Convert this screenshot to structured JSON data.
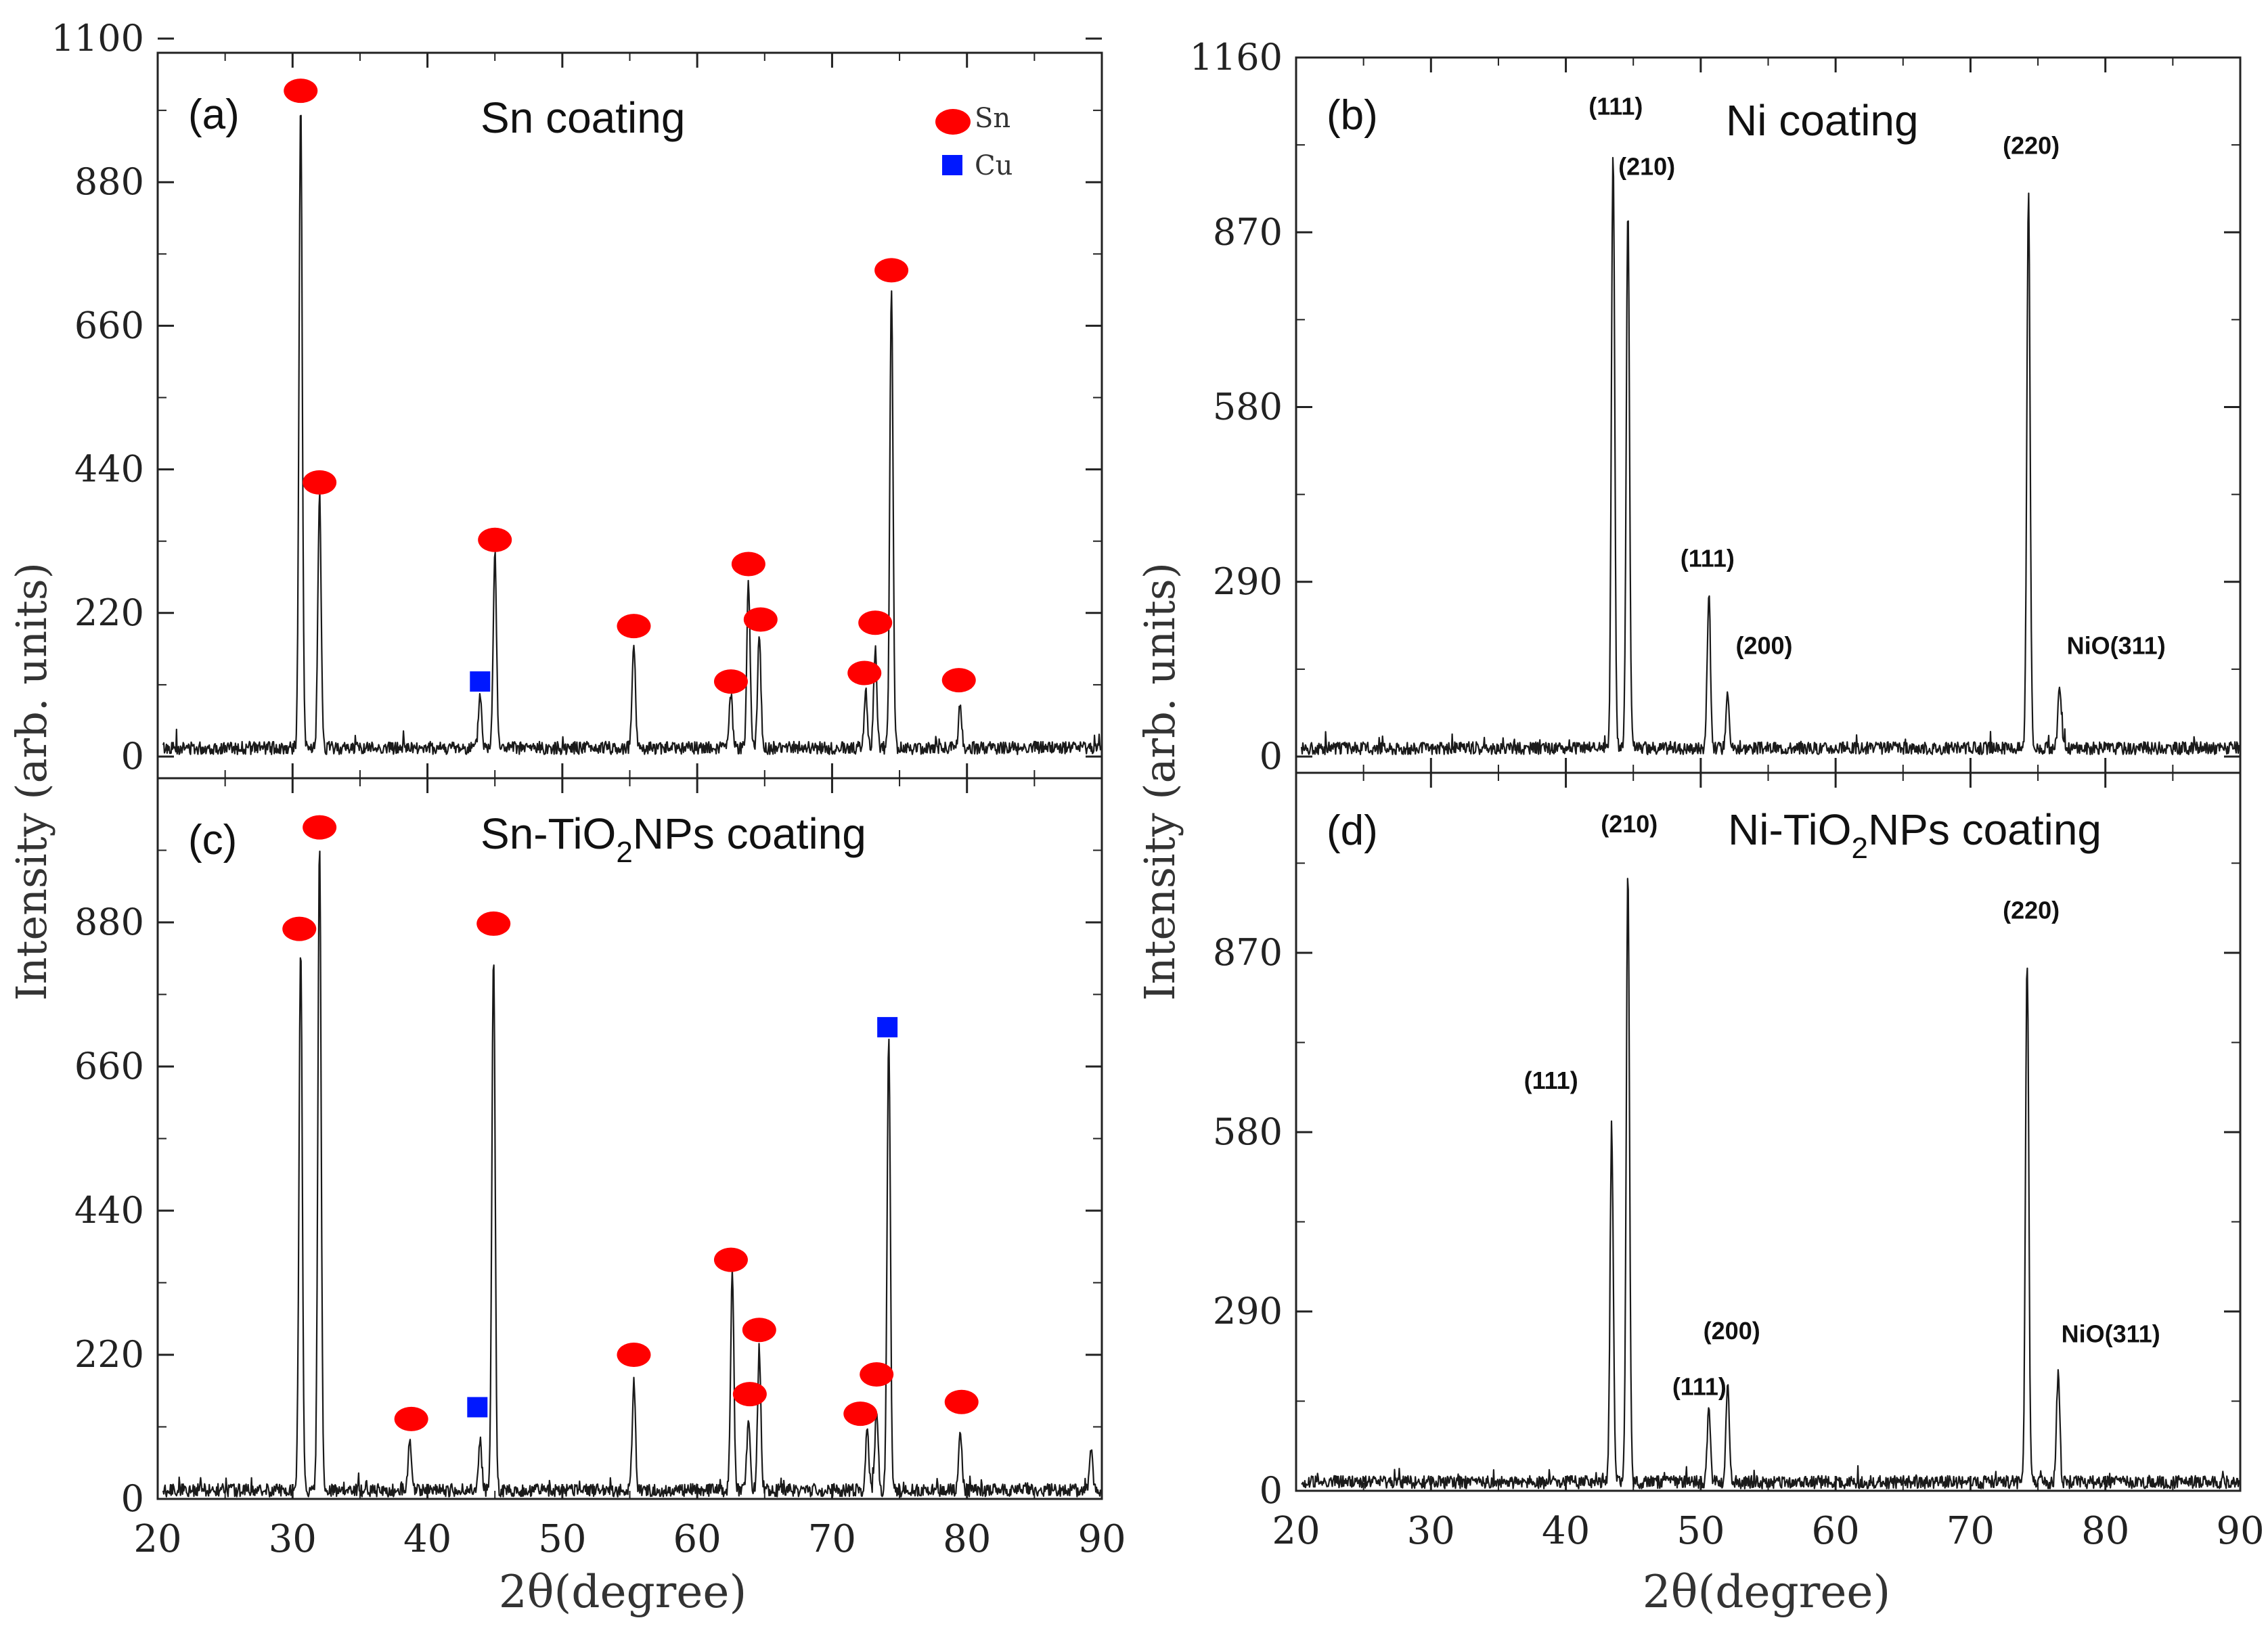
{
  "figure": {
    "ylabel": "Intensity (arb. units)",
    "xlabel": "2θ(degree)",
    "legend": {
      "sn": "Sn",
      "cu": "Cu",
      "sn_color": "#ff0000",
      "cu_color": "#0018ff"
    }
  },
  "chart_data": [
    {
      "id": "a",
      "type": "line",
      "panel_label": "(a)",
      "title": "Sn coating",
      "xlim": [
        20,
        90
      ],
      "ylim": [
        0,
        1100
      ],
      "xticks": [
        20,
        30,
        40,
        50,
        60,
        70,
        80,
        90
      ],
      "yticks": [
        0,
        220,
        440,
        660,
        880,
        1100
      ],
      "ytick_labels": [
        "0",
        "220",
        "440",
        "660",
        "880",
        "1100"
      ],
      "xtick_labels": [],
      "series": [
        {
          "name": "Sn coating",
          "peaks": [
            {
              "x": 30.6,
              "y": 1000
            },
            {
              "x": 32.0,
              "y": 400
            },
            {
              "x": 43.9,
              "y": 95
            },
            {
              "x": 45.0,
              "y": 315
            },
            {
              "x": 55.3,
              "y": 175
            },
            {
              "x": 62.5,
              "y": 95
            },
            {
              "x": 63.8,
              "y": 270
            },
            {
              "x": 64.6,
              "y": 185
            },
            {
              "x": 72.5,
              "y": 95
            },
            {
              "x": 73.2,
              "y": 165
            },
            {
              "x": 74.4,
              "y": 720
            },
            {
              "x": 79.5,
              "y": 80
            }
          ]
        }
      ],
      "markers": [
        {
          "kind": "sn",
          "x": 30.6,
          "y": 1020
        },
        {
          "kind": "sn",
          "x": 32.0,
          "y": 420
        },
        {
          "kind": "cu",
          "x": 43.9,
          "y": 115
        },
        {
          "kind": "sn",
          "x": 45.0,
          "y": 332
        },
        {
          "kind": "sn",
          "x": 55.3,
          "y": 200
        },
        {
          "kind": "sn",
          "x": 62.5,
          "y": 115
        },
        {
          "kind": "sn",
          "x": 63.8,
          "y": 295
        },
        {
          "kind": "sn",
          "x": 64.7,
          "y": 210
        },
        {
          "kind": "sn",
          "x": 72.4,
          "y": 128
        },
        {
          "kind": "sn",
          "x": 73.2,
          "y": 205
        },
        {
          "kind": "sn",
          "x": 74.4,
          "y": 745
        },
        {
          "kind": "sn",
          "x": 79.4,
          "y": 117
        }
      ],
      "annotations": []
    },
    {
      "id": "b",
      "type": "line",
      "panel_label": "(b)",
      "title": "Ni coating",
      "xlim": [
        20,
        90
      ],
      "ylim": [
        0,
        1160
      ],
      "xticks": [
        20,
        30,
        40,
        50,
        60,
        70,
        80,
        90
      ],
      "yticks": [
        0,
        290,
        580,
        870,
        1160
      ],
      "ytick_labels": [
        "0",
        "290",
        "580",
        "870",
        "1160"
      ],
      "xtick_labels": [],
      "series": [
        {
          "name": "Ni coating",
          "peaks": [
            {
              "x": 43.5,
              "y": 1000
            },
            {
              "x": 44.6,
              "y": 910
            },
            {
              "x": 50.6,
              "y": 270
            },
            {
              "x": 52.0,
              "y": 110
            },
            {
              "x": 74.3,
              "y": 940
            },
            {
              "x": 76.6,
              "y": 120
            }
          ]
        }
      ],
      "markers": [],
      "annotations": [
        {
          "text": "(111)",
          "x": 43.7,
          "y": 1065
        },
        {
          "text": "(210)",
          "x": 46.0,
          "y": 965
        },
        {
          "text": "(111)",
          "x": 50.5,
          "y": 315
        },
        {
          "text": "(200)",
          "x": 54.7,
          "y": 170
        },
        {
          "text": "(220)",
          "x": 74.5,
          "y": 1000
        },
        {
          "text": "NiO(311)",
          "x": 80.8,
          "y": 170
        }
      ]
    },
    {
      "id": "c",
      "type": "line",
      "panel_label": "(c)",
      "title": "Sn-TiO",
      "title_sub": "2",
      "title_end": "NPs coating",
      "xlim": [
        20,
        90
      ],
      "ylim": [
        0,
        1100
      ],
      "xticks": [
        20,
        30,
        40,
        50,
        60,
        70,
        80,
        90
      ],
      "yticks": [
        0,
        220,
        440,
        660,
        880
      ],
      "ytick_labels": [
        "0",
        "220",
        "440",
        "660",
        "880"
      ],
      "xtick_labels": [
        "20",
        "30",
        "40",
        "50",
        "60",
        "70",
        "80",
        "90"
      ],
      "series": [
        {
          "name": "Sn-TiO2NPs coating",
          "peaks": [
            {
              "x": 30.6,
              "y": 850
            },
            {
              "x": 32.0,
              "y": 1000
            },
            {
              "x": 38.7,
              "y": 95
            },
            {
              "x": 43.9,
              "y": 90
            },
            {
              "x": 44.9,
              "y": 830
            },
            {
              "x": 55.3,
              "y": 180
            },
            {
              "x": 62.6,
              "y": 340
            },
            {
              "x": 63.8,
              "y": 120
            },
            {
              "x": 64.6,
              "y": 230
            },
            {
              "x": 72.6,
              "y": 100
            },
            {
              "x": 73.3,
              "y": 140
            },
            {
              "x": 74.2,
              "y": 700
            },
            {
              "x": 79.5,
              "y": 110
            },
            {
              "x": 89.2,
              "y": 80
            }
          ]
        }
      ],
      "markers": [
        {
          "kind": "sn",
          "x": 30.5,
          "y": 870
        },
        {
          "kind": "sn",
          "x": 32.0,
          "y": 1025
        },
        {
          "kind": "sn",
          "x": 38.8,
          "y": 122
        },
        {
          "kind": "cu",
          "x": 43.7,
          "y": 140
        },
        {
          "kind": "sn",
          "x": 44.9,
          "y": 878
        },
        {
          "kind": "sn",
          "x": 55.3,
          "y": 220
        },
        {
          "kind": "sn",
          "x": 62.5,
          "y": 365
        },
        {
          "kind": "sn",
          "x": 63.9,
          "y": 160
        },
        {
          "kind": "sn",
          "x": 64.6,
          "y": 258
        },
        {
          "kind": "sn",
          "x": 72.1,
          "y": 130
        },
        {
          "kind": "sn",
          "x": 73.3,
          "y": 190
        },
        {
          "kind": "cu",
          "x": 74.1,
          "y": 720
        },
        {
          "kind": "sn",
          "x": 79.6,
          "y": 148
        }
      ],
      "annotations": []
    },
    {
      "id": "d",
      "type": "line",
      "panel_label": "(d)",
      "title": "Ni-TiO",
      "title_sub": "2",
      "title_end": "NPs coating",
      "xlim": [
        20,
        90
      ],
      "ylim": [
        0,
        1160
      ],
      "xticks": [
        20,
        30,
        40,
        50,
        60,
        70,
        80,
        90
      ],
      "yticks": [
        0,
        290,
        580,
        870
      ],
      "ytick_labels": [
        "0",
        "290",
        "580",
        "870"
      ],
      "xtick_labels": [
        "20",
        "30",
        "40",
        "50",
        "60",
        "70",
        "80",
        "90"
      ],
      "series": [
        {
          "name": "Ni-TiO2NPs coating",
          "peaks": [
            {
              "x": 43.4,
              "y": 580
            },
            {
              "x": 44.6,
              "y": 1000
            },
            {
              "x": 50.6,
              "y": 130
            },
            {
              "x": 52.0,
              "y": 180
            },
            {
              "x": 74.2,
              "y": 860
            },
            {
              "x": 76.5,
              "y": 190
            }
          ]
        }
      ],
      "markers": [],
      "annotations": [
        {
          "text": "(210)",
          "x": 44.7,
          "y": 1065
        },
        {
          "text": "(111)",
          "x": 38.9,
          "y": 650
        },
        {
          "text": "(200)",
          "x": 52.3,
          "y": 245
        },
        {
          "text": "(111)",
          "x": 49.9,
          "y": 155
        },
        {
          "text": "(220)",
          "x": 74.5,
          "y": 925
        },
        {
          "text": "NiO(311)",
          "x": 80.4,
          "y": 240
        }
      ]
    }
  ]
}
